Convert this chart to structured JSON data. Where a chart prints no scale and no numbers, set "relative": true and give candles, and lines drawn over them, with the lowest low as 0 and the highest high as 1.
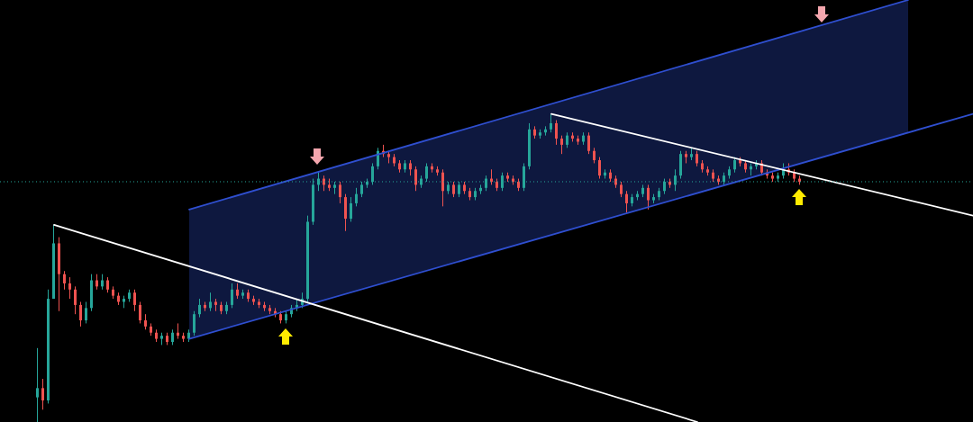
{
  "chart_data": {
    "type": "candlestick",
    "relative": true,
    "tick_labels": false,
    "marker": "none",
    "categories": [
      null,
      null,
      null,
      null,
      null,
      null,
      null,
      null,
      null,
      null,
      null,
      null,
      null,
      null,
      null,
      null,
      null,
      null,
      null,
      null,
      null,
      null,
      null,
      null,
      null,
      null,
      null,
      null,
      null,
      null,
      null,
      null,
      null,
      null,
      null,
      null,
      null,
      null,
      null,
      null,
      null,
      null,
      null,
      null,
      null,
      null,
      null,
      null,
      null,
      null,
      null,
      null,
      null,
      null,
      null,
      null,
      null,
      null,
      null,
      null,
      null,
      null,
      null,
      null,
      null,
      null,
      null,
      null,
      null,
      null,
      null,
      null,
      null,
      null,
      null,
      null,
      null,
      null,
      null,
      null,
      null,
      null,
      null,
      null,
      null,
      null,
      null,
      null,
      null,
      null,
      null,
      null,
      null,
      null,
      null,
      null,
      null,
      null,
      null,
      null,
      null,
      null,
      null,
      null,
      null,
      null,
      null,
      null,
      null,
      null,
      null,
      null,
      null,
      null,
      null,
      null,
      null,
      null,
      null,
      null,
      null,
      null,
      null,
      null,
      null,
      null,
      null,
      null,
      null,
      null,
      null,
      null,
      null,
      null,
      null,
      null,
      null,
      null,
      null,
      null,
      null,
      null,
      null,
      null,
      null,
      null,
      null,
      null,
      null,
      null,
      null,
      null,
      null,
      null,
      null,
      null,
      null,
      null,
      null,
      null,
      null,
      null,
      null,
      null,
      null,
      null,
      null,
      null,
      null,
      null,
      null,
      null,
      null,
      null,
      null,
      null,
      null,
      null,
      null,
      null,
      null
    ],
    "ohlc": [
      null,
      null,
      null,
      null,
      null,
      null,
      null,
      [
        0.08,
        0.24,
        0,
        0.11
      ],
      [
        0.11,
        0.14,
        0.04,
        0.07
      ],
      [
        0.07,
        0.43,
        0.06,
        0.4
      ],
      [
        0.4,
        0.64,
        0.4,
        0.58
      ],
      [
        0.58,
        0.6,
        0.36,
        0.48
      ],
      [
        0.48,
        0.49,
        0.43,
        0.45
      ],
      [
        0.45,
        0.47,
        0.4,
        0.43
      ],
      [
        0.43,
        0.44,
        0.35,
        0.38
      ],
      [
        0.38,
        0.39,
        0.31,
        0.33
      ],
      [
        0.33,
        0.39,
        0.32,
        0.37
      ],
      [
        0.37,
        0.48,
        0.36,
        0.46
      ],
      [
        0.46,
        0.48,
        0.43,
        0.44
      ],
      [
        0.44,
        0.48,
        0.43,
        0.46
      ],
      [
        0.46,
        0.47,
        0.42,
        0.43
      ],
      [
        0.43,
        0.44,
        0.4,
        0.41
      ],
      [
        0.41,
        0.42,
        0.38,
        0.39
      ],
      [
        0.39,
        0.41,
        0.37,
        0.4
      ],
      [
        0.4,
        0.43,
        0.39,
        0.42
      ],
      [
        0.42,
        0.43,
        0.36,
        0.38
      ],
      [
        0.38,
        0.39,
        0.32,
        0.33
      ],
      [
        0.33,
        0.35,
        0.3,
        0.31
      ],
      [
        0.31,
        0.32,
        0.28,
        0.29
      ],
      [
        0.29,
        0.3,
        0.26,
        0.27
      ],
      [
        0.27,
        0.29,
        0.25,
        0.28
      ],
      [
        0.28,
        0.29,
        0.25,
        0.26
      ],
      [
        0.26,
        0.3,
        0.25,
        0.29
      ],
      [
        0.29,
        0.32,
        0.27,
        0.28
      ],
      [
        0.28,
        0.29,
        0.26,
        0.27
      ],
      [
        0.27,
        0.3,
        0.26,
        0.29
      ],
      [
        0.29,
        0.36,
        0.28,
        0.35
      ],
      [
        0.35,
        0.4,
        0.34,
        0.38
      ],
      [
        0.38,
        0.39,
        0.36,
        0.37
      ],
      [
        0.37,
        0.42,
        0.36,
        0.39
      ],
      [
        0.39,
        0.4,
        0.36,
        0.38
      ],
      [
        0.38,
        0.39,
        0.35,
        0.36
      ],
      [
        0.36,
        0.39,
        0.35,
        0.38
      ],
      [
        0.38,
        0.45,
        0.37,
        0.43
      ],
      [
        0.43,
        0.45,
        0.4,
        0.41
      ],
      [
        0.41,
        0.43,
        0.4,
        0.42
      ],
      [
        0.42,
        0.43,
        0.39,
        0.4
      ],
      [
        0.4,
        0.41,
        0.38,
        0.39
      ],
      [
        0.39,
        0.4,
        0.37,
        0.38
      ],
      [
        0.38,
        0.39,
        0.36,
        0.37
      ],
      [
        0.37,
        0.38,
        0.35,
        0.36
      ],
      [
        0.36,
        0.37,
        0.34,
        0.35
      ],
      [
        0.35,
        0.36,
        0.32,
        0.33
      ],
      [
        0.33,
        0.36,
        0.32,
        0.35
      ],
      [
        0.35,
        0.38,
        0.34,
        0.37
      ],
      [
        0.37,
        0.4,
        0.36,
        0.38
      ],
      [
        0.38,
        0.42,
        0.37,
        0.4
      ],
      [
        0.4,
        0.67,
        0.39,
        0.65
      ],
      [
        0.65,
        0.79,
        0.64,
        0.77
      ],
      [
        0.77,
        0.81,
        0.75,
        0.79
      ],
      [
        0.79,
        0.8,
        0.75,
        0.77
      ],
      [
        0.77,
        0.79,
        0.75,
        0.76
      ],
      [
        0.76,
        0.78,
        0.74,
        0.77
      ],
      [
        0.77,
        0.78,
        0.71,
        0.73
      ],
      [
        0.73,
        0.74,
        0.62,
        0.66
      ],
      [
        0.66,
        0.73,
        0.65,
        0.71
      ],
      [
        0.71,
        0.76,
        0.7,
        0.74
      ],
      [
        0.74,
        0.78,
        0.73,
        0.77
      ],
      [
        0.77,
        0.79,
        0.76,
        0.78
      ],
      [
        0.78,
        0.84,
        0.77,
        0.83
      ],
      [
        0.83,
        0.89,
        0.82,
        0.88
      ],
      [
        0.88,
        0.9,
        0.86,
        0.87
      ],
      [
        0.87,
        0.88,
        0.84,
        0.86
      ],
      [
        0.86,
        0.87,
        0.83,
        0.84
      ],
      [
        0.84,
        0.85,
        0.81,
        0.82
      ],
      [
        0.82,
        0.85,
        0.81,
        0.84
      ],
      [
        0.84,
        0.85,
        0.8,
        0.82
      ],
      [
        0.82,
        0.83,
        0.75,
        0.77
      ],
      [
        0.77,
        0.8,
        0.76,
        0.79
      ],
      [
        0.79,
        0.84,
        0.78,
        0.83
      ],
      [
        0.83,
        0.84,
        0.81,
        0.82
      ],
      [
        0.82,
        0.83,
        0.8,
        0.81
      ],
      [
        0.81,
        0.82,
        0.7,
        0.75
      ],
      [
        0.75,
        0.78,
        0.74,
        0.77
      ],
      [
        0.77,
        0.78,
        0.73,
        0.74
      ],
      [
        0.74,
        0.78,
        0.73,
        0.77
      ],
      [
        0.77,
        0.78,
        0.74,
        0.75
      ],
      [
        0.75,
        0.76,
        0.72,
        0.73
      ],
      [
        0.73,
        0.76,
        0.72,
        0.75
      ],
      [
        0.75,
        0.77,
        0.74,
        0.76
      ],
      [
        0.76,
        0.8,
        0.75,
        0.79
      ],
      [
        0.79,
        0.82,
        0.77,
        0.78
      ],
      [
        0.78,
        0.79,
        0.75,
        0.76
      ],
      [
        0.76,
        0.81,
        0.75,
        0.8
      ],
      [
        0.8,
        0.81,
        0.78,
        0.79
      ],
      [
        0.79,
        0.8,
        0.77,
        0.78
      ],
      [
        0.78,
        0.79,
        0.75,
        0.76
      ],
      [
        0.76,
        0.84,
        0.75,
        0.83
      ],
      [
        0.83,
        0.97,
        0.82,
        0.95
      ],
      [
        0.95,
        0.96,
        0.92,
        0.93
      ],
      [
        0.93,
        0.95,
        0.92,
        0.94
      ],
      [
        0.94,
        0.96,
        0.93,
        0.95
      ],
      [
        0.95,
        1,
        0.94,
        0.97
      ],
      [
        0.97,
        0.98,
        0.9,
        0.92
      ],
      [
        0.92,
        0.93,
        0.87,
        0.9
      ],
      [
        0.9,
        0.94,
        0.89,
        0.93
      ],
      [
        0.93,
        0.94,
        0.91,
        0.92
      ],
      [
        0.92,
        0.93,
        0.9,
        0.91
      ],
      [
        0.91,
        0.94,
        0.9,
        0.93
      ],
      [
        0.93,
        0.94,
        0.87,
        0.88
      ],
      [
        0.88,
        0.89,
        0.84,
        0.85
      ],
      [
        0.85,
        0.86,
        0.79,
        0.8
      ],
      [
        0.8,
        0.82,
        0.79,
        0.81
      ],
      [
        0.81,
        0.82,
        0.78,
        0.79
      ],
      [
        0.79,
        0.8,
        0.76,
        0.77
      ],
      [
        0.77,
        0.78,
        0.73,
        0.74
      ],
      [
        0.74,
        0.75,
        0.68,
        0.71
      ],
      [
        0.71,
        0.74,
        0.7,
        0.73
      ],
      [
        0.73,
        0.75,
        0.72,
        0.74
      ],
      [
        0.74,
        0.77,
        0.73,
        0.76
      ],
      [
        0.76,
        0.77,
        0.69,
        0.72
      ],
      [
        0.72,
        0.74,
        0.71,
        0.73
      ],
      [
        0.73,
        0.76,
        0.72,
        0.75
      ],
      [
        0.75,
        0.79,
        0.74,
        0.78
      ],
      [
        0.78,
        0.79,
        0.76,
        0.77
      ],
      [
        0.77,
        0.82,
        0.75,
        0.8
      ],
      [
        0.8,
        0.88,
        0.79,
        0.87
      ],
      [
        0.87,
        0.88,
        0.84,
        0.86
      ],
      [
        0.86,
        0.89,
        0.85,
        0.87
      ],
      [
        0.87,
        0.88,
        0.83,
        0.84
      ],
      [
        0.84,
        0.85,
        0.81,
        0.82
      ],
      [
        0.82,
        0.83,
        0.8,
        0.81
      ],
      [
        0.81,
        0.82,
        0.78,
        0.79
      ],
      [
        0.79,
        0.8,
        0.77,
        0.78
      ],
      [
        0.78,
        0.81,
        0.77,
        0.8
      ],
      [
        0.8,
        0.83,
        0.79,
        0.82
      ],
      [
        0.82,
        0.86,
        0.81,
        0.85
      ],
      [
        0.85,
        0.86,
        0.83,
        0.84
      ],
      [
        0.84,
        0.85,
        0.81,
        0.82
      ],
      [
        0.82,
        0.84,
        0.8,
        0.83
      ],
      [
        0.83,
        0.85,
        0.82,
        0.84
      ],
      [
        0.84,
        0.85,
        0.8,
        0.81
      ],
      [
        0.81,
        0.82,
        0.79,
        0.8
      ],
      [
        0.8,
        0.81,
        0.78,
        0.79
      ],
      [
        0.79,
        0.81,
        0.78,
        0.8
      ],
      [
        0.8,
        0.84,
        0.79,
        0.82
      ],
      [
        0.82,
        0.84,
        0.8,
        0.81
      ],
      [
        0.81,
        0.82,
        0.78,
        0.79
      ],
      [
        0.79,
        0.8,
        0.77,
        0.78
      ],
      null,
      null,
      null,
      null,
      null,
      null,
      null,
      null,
      null,
      null,
      null,
      null,
      null,
      null,
      null,
      null,
      null,
      null,
      null,
      null,
      null,
      null,
      null,
      null,
      null,
      null,
      null,
      null,
      null,
      null,
      null,
      null
    ],
    "colors": [
      null,
      null,
      null,
      null,
      null,
      null,
      null,
      "#26a69a",
      "#ef5350",
      "#26a69a",
      "#26a69a",
      "#ef5350",
      "#ef5350",
      "#ef5350",
      "#ef5350",
      "#ef5350",
      "#26a69a",
      "#26a69a",
      "#ef5350",
      "#26a69a",
      "#ef5350",
      "#ef5350",
      "#ef5350",
      "#26a69a",
      "#26a69a",
      "#ef5350",
      "#ef5350",
      "#ef5350",
      "#ef5350",
      "#ef5350",
      "#26a69a",
      "#ef5350",
      "#26a69a",
      "#ef5350",
      "#ef5350",
      "#26a69a",
      "#26a69a",
      "#26a69a",
      "#ef5350",
      "#26a69a",
      "#ef5350",
      "#ef5350",
      "#26a69a",
      "#26a69a",
      "#ef5350",
      "#26a69a",
      "#ef5350",
      "#ef5350",
      "#ef5350",
      "#ef5350",
      "#ef5350",
      "#ef5350",
      "#ef5350",
      "#26a69a",
      "#26a69a",
      "#26a69a",
      "#26a69a",
      "#26a69a",
      "#26a69a",
      "#26a69a",
      "#ef5350",
      "#ef5350",
      "#26a69a",
      "#ef5350",
      "#ef5350",
      "#26a69a",
      "#26a69a",
      "#26a69a",
      "#26a69a",
      "#26a69a",
      "#26a69a",
      "#ef5350",
      "#ef5350",
      "#ef5350",
      "#ef5350",
      "#26a69a",
      "#ef5350",
      "#ef5350",
      "#26a69a",
      "#26a69a",
      "#ef5350",
      "#ef5350",
      "#ef5350",
      "#26a69a",
      "#ef5350",
      "#26a69a",
      "#ef5350",
      "#ef5350",
      "#26a69a",
      "#26a69a",
      "#26a69a",
      "#ef5350",
      "#ef5350",
      "#26a69a",
      "#ef5350",
      "#ef5350",
      "#ef5350",
      "#26a69a",
      "#26a69a",
      "#ef5350",
      "#26a69a",
      "#26a69a",
      "#26a69a",
      "#ef5350",
      "#ef5350",
      "#26a69a",
      "#ef5350",
      "#ef5350",
      "#26a69a",
      "#ef5350",
      "#ef5350",
      "#ef5350",
      "#26a69a",
      "#ef5350",
      "#ef5350",
      "#ef5350",
      "#ef5350",
      "#26a69a",
      "#26a69a",
      "#26a69a",
      "#ef5350",
      "#26a69a",
      "#26a69a",
      "#26a69a",
      "#ef5350",
      "#26a69a",
      "#26a69a",
      "#ef5350",
      "#26a69a",
      "#ef5350",
      "#ef5350",
      "#ef5350",
      "#ef5350",
      "#ef5350",
      "#26a69a",
      "#26a69a",
      "#26a69a",
      "#ef5350",
      "#ef5350",
      "#26a69a",
      "#26a69a",
      "#ef5350",
      "#ef5350",
      "#ef5350",
      "#26a69a",
      "#26a69a",
      "#ef5350",
      "#ef5350",
      "#ef5350",
      null,
      null,
      null,
      null,
      null,
      null,
      null,
      null,
      null,
      null,
      null,
      null,
      null,
      null,
      null,
      null,
      null,
      null,
      null,
      null,
      null,
      null,
      null,
      null,
      null,
      null,
      null,
      null,
      null,
      null,
      null,
      null
    ],
    "series": [
      {
        "type": "line",
        "color": "#2f4fd0",
        "values": [
          null,
          null,
          null,
          null,
          null,
          null,
          null,
          null,
          null,
          null,
          null,
          null,
          null,
          null,
          null,
          null,
          null,
          null,
          null,
          null,
          null,
          null,
          null,
          null,
          null,
          null,
          null,
          null,
          null,
          null,
          null,
          null,
          null,
          null,
          null,
          0.27,
          null,
          null,
          null,
          null,
          null,
          null,
          null,
          null,
          null,
          null,
          null,
          null,
          null,
          null,
          null,
          null,
          null,
          null,
          null,
          null,
          null,
          null,
          null,
          null,
          null,
          null,
          null,
          null,
          null,
          null,
          null,
          null,
          null,
          null,
          null,
          null,
          null,
          null,
          null,
          null,
          null,
          null,
          null,
          null,
          null,
          null,
          null,
          null,
          null,
          null,
          null,
          null,
          null,
          null,
          null,
          null,
          null,
          null,
          null,
          null,
          null,
          null,
          null,
          null,
          null,
          null,
          null,
          null,
          null,
          null,
          null,
          null,
          null,
          null,
          null,
          null,
          null,
          null,
          null,
          null,
          null,
          null,
          null,
          null,
          null,
          null,
          null,
          null,
          null,
          null,
          null,
          null,
          null,
          null,
          null,
          null,
          null,
          null,
          null,
          null,
          null,
          null,
          null,
          null,
          null,
          null,
          null,
          null,
          null,
          null,
          null,
          null,
          null,
          null,
          null,
          null,
          null,
          null,
          null,
          null,
          null,
          null,
          null,
          null,
          null,
          null,
          null,
          null,
          null,
          null,
          null,
          null,
          null,
          null,
          null,
          null,
          null,
          null,
          null,
          null,
          null,
          null,
          null,
          null,
          1
        ],
        "lower": [
          null,
          null,
          null,
          null,
          null,
          null,
          null,
          null,
          null,
          null,
          null,
          null,
          null,
          null,
          null,
          null,
          null,
          null,
          null,
          null,
          null,
          null,
          null,
          null,
          null,
          null,
          null,
          null,
          null,
          null,
          null,
          null,
          null,
          null,
          null,
          0.27,
          null,
          null,
          null,
          null,
          null,
          null,
          null,
          null,
          null,
          null,
          null,
          null,
          null,
          null,
          null,
          null,
          null,
          null,
          null,
          null,
          null,
          null,
          null,
          null,
          null,
          null,
          null,
          null,
          null,
          null,
          null,
          null,
          null,
          null,
          null,
          null,
          null,
          null,
          null,
          null,
          null,
          null,
          null,
          null,
          null,
          null,
          null,
          null,
          null,
          null,
          null,
          null,
          null,
          null,
          null,
          null,
          null,
          null,
          null,
          null,
          null,
          null,
          null,
          null,
          null,
          null,
          null,
          null,
          null,
          null,
          null,
          null,
          null,
          null,
          null,
          null,
          null,
          null,
          null,
          null,
          null,
          null,
          null,
          null,
          null,
          null,
          null,
          null,
          null,
          null,
          null,
          null,
          null,
          null,
          null,
          null,
          null,
          null,
          null,
          null,
          null,
          null,
          null,
          null,
          null,
          null,
          null,
          null,
          null,
          null,
          null,
          null,
          null,
          null,
          null,
          null,
          null,
          null,
          null,
          null,
          null,
          null,
          null,
          null,
          null,
          null,
          null,
          null,
          null,
          null,
          null,
          null,
          0.94,
          null,
          null,
          null,
          null,
          null,
          null,
          null,
          null,
          null,
          null,
          null,
          null
        ],
        "upper": [
          null,
          null,
          null,
          null,
          null,
          null,
          null,
          null,
          null,
          null,
          null,
          null,
          null,
          null,
          null,
          null,
          null,
          null,
          null,
          null,
          null,
          null,
          null,
          null,
          null,
          null,
          null,
          null,
          null,
          null,
          null,
          null,
          null,
          null,
          null,
          0.69,
          null,
          null,
          null,
          null,
          null,
          null,
          null,
          null,
          null,
          null,
          null,
          null,
          null,
          null,
          null,
          null,
          null,
          null,
          null,
          null,
          null,
          null,
          null,
          null,
          null,
          null,
          null,
          null,
          null,
          null,
          null,
          null,
          null,
          null,
          null,
          null,
          null,
          null,
          null,
          null,
          null,
          null,
          null,
          null,
          null,
          null,
          null,
          null,
          null,
          null,
          null,
          null,
          null,
          null,
          null,
          null,
          null,
          null,
          null,
          null,
          null,
          null,
          null,
          null,
          null,
          null,
          null,
          null,
          null,
          null,
          null,
          null,
          null,
          null,
          null,
          null,
          null,
          null,
          null,
          null,
          null,
          null,
          null,
          null,
          null,
          null,
          null,
          null,
          null,
          null,
          null,
          null,
          null,
          null,
          null,
          null,
          null,
          null,
          null,
          null,
          null,
          null,
          null,
          null,
          null,
          null,
          null,
          null,
          null,
          null,
          null,
          null,
          null,
          null,
          null,
          null,
          null,
          null,
          null,
          null,
          null,
          null,
          null,
          null,
          null,
          null,
          null,
          null,
          null,
          null,
          null,
          null,
          1.37,
          null,
          null,
          null,
          null,
          null,
          null,
          null,
          null,
          null,
          null,
          null,
          null
        ]
      },
      {
        "type": "line",
        "color": "#2f4fd0",
        "values": [
          null,
          null,
          null,
          null,
          null,
          null,
          null,
          null,
          null,
          null,
          null,
          null,
          null,
          null,
          null,
          null,
          null,
          null,
          null,
          null,
          null,
          null,
          null,
          null,
          null,
          null,
          null,
          null,
          null,
          null,
          null,
          null,
          null,
          null,
          null,
          0.69,
          null,
          null,
          null,
          null,
          null,
          null,
          null,
          null,
          null,
          null,
          null,
          null,
          null,
          null,
          null,
          null,
          null,
          null,
          null,
          null,
          null,
          null,
          null,
          null,
          null,
          null,
          null,
          null,
          null,
          null,
          null,
          null,
          null,
          null,
          null,
          null,
          null,
          null,
          null,
          null,
          null,
          null,
          null,
          null,
          null,
          null,
          null,
          null,
          null,
          null,
          null,
          null,
          null,
          null,
          null,
          null,
          null,
          null,
          null,
          null,
          null,
          null,
          null,
          null,
          null,
          null,
          null,
          null,
          null,
          null,
          null,
          null,
          null,
          null,
          null,
          null,
          null,
          null,
          null,
          null,
          null,
          null,
          null,
          null,
          null,
          null,
          null,
          null,
          null,
          null,
          null,
          null,
          null,
          null,
          null,
          null,
          null,
          null,
          null,
          null,
          null,
          null,
          null,
          null,
          null,
          null,
          null,
          null,
          null,
          null,
          null,
          null,
          null,
          null,
          null,
          null,
          null,
          null,
          null,
          null,
          null,
          null,
          null,
          null,
          null,
          null,
          null,
          null,
          null,
          null,
          null,
          null,
          1.37,
          null,
          null,
          null,
          null,
          null,
          null,
          null,
          null,
          null,
          null,
          null,
          null
        ]
      },
      {
        "type": "line",
        "color": "#ffffff",
        "values": [
          null,
          null,
          null,
          null,
          null,
          null,
          null,
          null,
          null,
          null,
          0.64,
          null,
          null,
          null,
          null,
          null,
          null,
          null,
          null,
          null,
          null,
          null,
          null,
          null,
          null,
          null,
          null,
          null,
          null,
          null,
          null,
          null,
          null,
          null,
          null,
          null,
          null,
          null,
          null,
          null,
          null,
          null,
          null,
          null,
          null,
          null,
          null,
          null,
          null,
          null,
          null,
          null,
          null,
          null,
          null,
          null,
          null,
          null,
          null,
          null,
          null,
          null,
          null,
          null,
          null,
          null,
          null,
          null,
          null,
          null,
          null,
          null,
          null,
          null,
          null,
          null,
          null,
          null,
          null,
          null,
          null,
          null,
          null,
          null,
          null,
          null,
          null,
          null,
          null,
          null,
          null,
          null,
          null,
          null,
          null,
          null,
          null,
          null,
          null,
          null,
          null,
          null,
          null,
          null,
          null,
          null,
          null,
          null,
          null,
          null,
          null,
          null,
          null,
          null,
          null,
          null,
          null,
          null,
          null,
          null,
          null,
          null,
          null,
          null,
          null,
          null,
          null,
          null,
          null,
          0,
          null,
          null,
          null,
          null,
          null,
          null,
          null,
          null,
          null,
          null,
          null,
          null,
          null,
          null,
          null,
          null,
          null,
          null,
          null,
          null,
          null,
          null,
          null,
          null,
          null,
          null,
          null,
          null,
          null,
          null,
          null,
          null,
          null,
          null,
          null,
          null,
          null,
          null,
          null,
          null,
          null,
          null,
          null,
          null,
          null,
          null,
          null,
          null,
          null,
          null,
          null
        ]
      },
      {
        "type": "line",
        "color": "#ffffff",
        "values": [
          null,
          null,
          null,
          null,
          null,
          null,
          null,
          null,
          null,
          null,
          null,
          null,
          null,
          null,
          null,
          null,
          null,
          null,
          null,
          null,
          null,
          null,
          null,
          null,
          null,
          null,
          null,
          null,
          null,
          null,
          null,
          null,
          null,
          null,
          null,
          null,
          null,
          null,
          null,
          null,
          null,
          null,
          null,
          null,
          null,
          null,
          null,
          null,
          null,
          null,
          null,
          null,
          null,
          null,
          null,
          null,
          null,
          null,
          null,
          null,
          null,
          null,
          null,
          null,
          null,
          null,
          null,
          null,
          null,
          null,
          null,
          null,
          null,
          null,
          null,
          null,
          null,
          null,
          null,
          null,
          null,
          null,
          null,
          null,
          null,
          null,
          null,
          null,
          null,
          null,
          null,
          null,
          null,
          null,
          null,
          null,
          null,
          null,
          null,
          null,
          null,
          null,
          1,
          null,
          null,
          null,
          null,
          null,
          null,
          null,
          null,
          null,
          null,
          null,
          null,
          null,
          null,
          null,
          null,
          null,
          null,
          null,
          null,
          null,
          null,
          null,
          null,
          null,
          null,
          null,
          null,
          null,
          null,
          null,
          null,
          null,
          null,
          null,
          null,
          null,
          null,
          null,
          null,
          null,
          null,
          null,
          null,
          null,
          null,
          null,
          null,
          null,
          null,
          null,
          null,
          null,
          null,
          null,
          null,
          null,
          null,
          null,
          null,
          null,
          null,
          null,
          null,
          null,
          null,
          null,
          null,
          null,
          null,
          null,
          null,
          null,
          null,
          null,
          null,
          null,
          0.67
        ]
      }
    ],
    "ref_lines": [
      {
        "axis": "y",
        "value": 0.78,
        "color": "#26a69a",
        "line_style": "dotted"
      }
    ]
  }
}
